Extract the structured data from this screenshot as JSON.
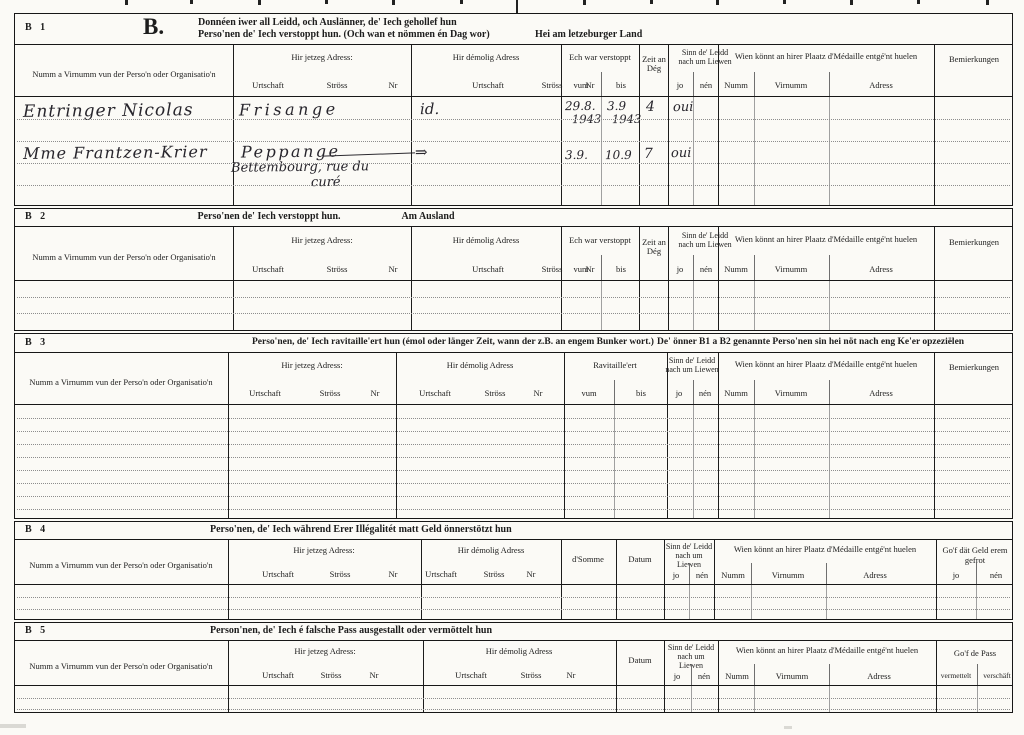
{
  "header": {
    "b1_label": "B 1",
    "big_b": "B.",
    "line1": "Donnéen iwer all Leidd, och Auslänner, de' Iech gehollef hun",
    "line2": "Perso'nen de' Iech verstoppt hun. (Och wan et nömmen én Dag wor)",
    "line2_suffix": "Hei am letzeburger Land"
  },
  "cols": {
    "name": "Numm a Virnumm vun der Perso'n oder Organisatio'n",
    "jetzeg": "Hir jetzeg Adress:",
    "demolig": "Hir démolig Adress",
    "urtschaft": "Urtschaft",
    "stross": "Ströss",
    "nr": "Nr",
    "verstoppt": "Ech war verstoppt",
    "vum": "vum",
    "bis": "bis",
    "zeit": "Zeit an Dég",
    "sinn": "Sinn de' Leidd nach um Liewen",
    "jo": "jo",
    "nen": "nén",
    "wien": "Wien könnt an hirer Plaatz d'Médaille entgé'nt huelen",
    "numm": "Numm",
    "virnumm": "Virnumm",
    "adress": "Adress",
    "bem": "Bemierkungen",
    "ravit": "Ravitaille'ert",
    "somme": "d'Somme",
    "datum": "Datum",
    "gof_geld": "Go'f dät Geld erem gefrot",
    "gof_pass": "Go'f de Pass",
    "vermettelt": "vermettelt",
    "verschaft": "verschäft"
  },
  "sections": {
    "b2": {
      "label": "B 2",
      "title": "Perso'nen de' Iech verstoppt hun.",
      "subtitle": "Am Ausland"
    },
    "b3": {
      "label": "B 3",
      "title": "Perso'nen, de' Iech ravitaille'ert hun (émol oder länger Zeit, wann der z.B. an engem Bunker wort.)",
      "note": "De' önner B1 a B2 genannte Perso'nen sin hei nöt nach eng Ke'er opzeziëlen"
    },
    "b4": {
      "label": "B 4",
      "title": "Perso'nen, de' Iech während Erer Illégalitét matt Geld önnerstötzt hun"
    },
    "b5": {
      "label": "B 5",
      "title": "Person'nen, de' Iech é falsche Pass ausgestallt oder vermöttelt hun"
    }
  },
  "entries": {
    "row1": {
      "name": "Entringer Nicolas",
      "urtschaft": "Frisange",
      "demolig": "id.",
      "vum1": "29.8.",
      "vum2": "1943",
      "bis1": "3.9",
      "bis2": "1943",
      "zeit": "4",
      "liewen": "oui"
    },
    "row2": {
      "name": "Mme Frantzen-Krier",
      "urtschaft": "Peppange",
      "addr2a": "Bettembourg, rue du",
      "addr2b": "curé",
      "arrow": "⇒",
      "vum1": "3.9.",
      "bis1": "10.9",
      "zeit": "7",
      "liewen": "oui"
    }
  }
}
